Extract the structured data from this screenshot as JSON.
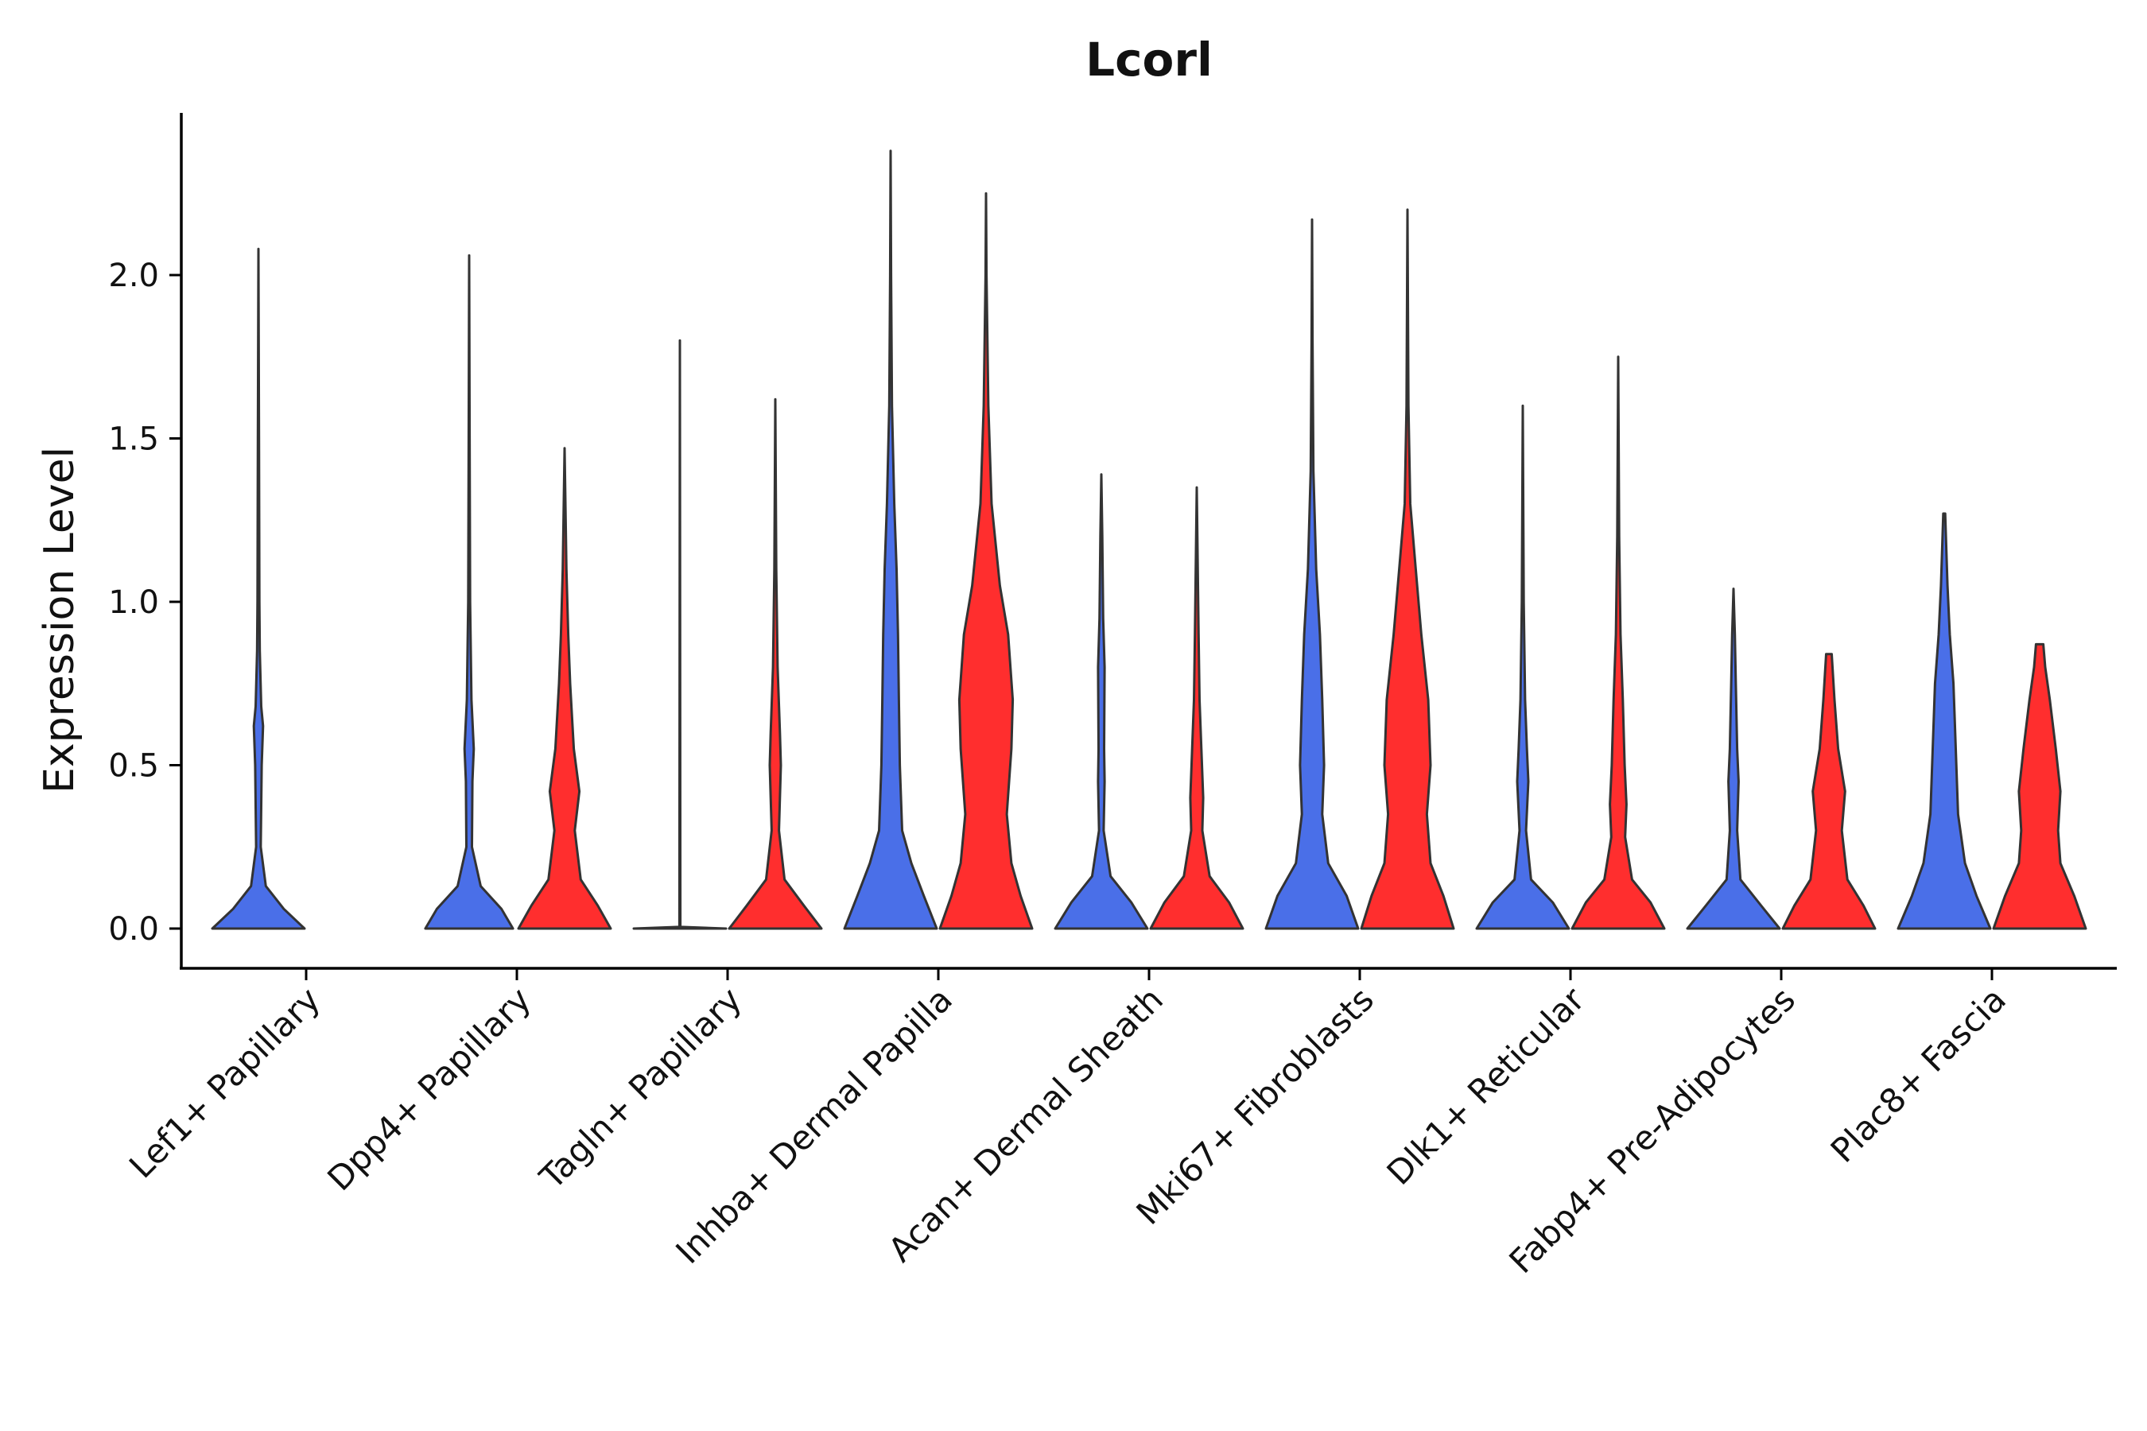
{
  "chart_data": {
    "type": "violin",
    "title": "Lcorl",
    "xlabel": "",
    "ylabel": "Expression Level",
    "ylim": [
      -0.12,
      2.5
    ],
    "yticks": [
      {
        "value": 0.0,
        "label": "0.0"
      },
      {
        "value": 0.5,
        "label": "0.5"
      },
      {
        "value": 1.0,
        "label": "1.0"
      },
      {
        "value": 1.5,
        "label": "1.5"
      },
      {
        "value": 2.0,
        "label": "2.0"
      }
    ],
    "legend": "none",
    "grid": false,
    "series_colors": {
      "group1": "#4A6FE8",
      "group2": "#FF2E2E"
    },
    "categories": [
      {
        "label": "Lef1+ Papillary",
        "violins": [
          {
            "group": "group1",
            "max": 2.08,
            "profile": [
              [
                0,
                1
              ],
              [
                0.06,
                0.55
              ],
              [
                0.13,
                0.16
              ],
              [
                0.25,
                0.05
              ],
              [
                0.5,
                0.07
              ],
              [
                0.62,
                0.1
              ],
              [
                0.68,
                0.06
              ],
              [
                0.85,
                0.03
              ],
              [
                1.0,
                0.02
              ],
              [
                1.5,
                0.012
              ],
              [
                2.08,
                0
              ]
            ]
          }
        ]
      },
      {
        "label": "Dpp4+ Papillary",
        "violins": [
          {
            "group": "group1",
            "max": 2.06,
            "profile": [
              [
                0,
                0.95
              ],
              [
                0.06,
                0.7
              ],
              [
                0.13,
                0.25
              ],
              [
                0.25,
                0.06
              ],
              [
                0.45,
                0.07
              ],
              [
                0.55,
                0.1
              ],
              [
                0.7,
                0.05
              ],
              [
                1.0,
                0.02
              ],
              [
                1.5,
                0.01
              ],
              [
                2.06,
                0
              ]
            ]
          },
          {
            "group": "group2",
            "max": 1.47,
            "profile": [
              [
                0,
                1
              ],
              [
                0.07,
                0.72
              ],
              [
                0.15,
                0.35
              ],
              [
                0.3,
                0.22
              ],
              [
                0.42,
                0.32
              ],
              [
                0.55,
                0.2
              ],
              [
                0.75,
                0.12
              ],
              [
                0.9,
                0.08
              ],
              [
                1.1,
                0.04
              ],
              [
                1.47,
                0
              ]
            ]
          }
        ]
      },
      {
        "label": "Tagln+ Papillary",
        "violins": [
          {
            "group": "group1",
            "max": 1.8,
            "profile": [
              [
                0,
                1
              ],
              [
                0.005,
                0.01
              ],
              [
                0.05,
                0.01
              ],
              [
                1.8,
                0
              ]
            ]
          },
          {
            "group": "group2",
            "max": 1.62,
            "profile": [
              [
                0,
                1
              ],
              [
                0.07,
                0.62
              ],
              [
                0.15,
                0.2
              ],
              [
                0.3,
                0.08
              ],
              [
                0.5,
                0.12
              ],
              [
                0.6,
                0.1
              ],
              [
                0.8,
                0.05
              ],
              [
                1.1,
                0.02
              ],
              [
                1.62,
                0
              ]
            ]
          }
        ]
      },
      {
        "label": "Inhba+ Dermal Papilla",
        "violins": [
          {
            "group": "group1",
            "max": 2.38,
            "profile": [
              [
                0,
                1
              ],
              [
                0.1,
                0.72
              ],
              [
                0.2,
                0.45
              ],
              [
                0.3,
                0.25
              ],
              [
                0.5,
                0.2
              ],
              [
                0.7,
                0.18
              ],
              [
                0.9,
                0.16
              ],
              [
                1.1,
                0.13
              ],
              [
                1.3,
                0.08
              ],
              [
                1.6,
                0.03
              ],
              [
                2.0,
                0.01
              ],
              [
                2.38,
                0
              ]
            ]
          },
          {
            "group": "group2",
            "max": 2.25,
            "profile": [
              [
                0,
                1
              ],
              [
                0.1,
                0.75
              ],
              [
                0.2,
                0.55
              ],
              [
                0.35,
                0.45
              ],
              [
                0.55,
                0.55
              ],
              [
                0.7,
                0.58
              ],
              [
                0.9,
                0.48
              ],
              [
                1.05,
                0.3
              ],
              [
                1.3,
                0.12
              ],
              [
                1.6,
                0.05
              ],
              [
                2.0,
                0.01
              ],
              [
                2.25,
                0
              ]
            ]
          }
        ]
      },
      {
        "label": "Acan+ Dermal Sheath",
        "violins": [
          {
            "group": "group1",
            "max": 1.39,
            "profile": [
              [
                0,
                1
              ],
              [
                0.08,
                0.65
              ],
              [
                0.16,
                0.2
              ],
              [
                0.3,
                0.05
              ],
              [
                0.45,
                0.07
              ],
              [
                0.55,
                0.06
              ],
              [
                0.8,
                0.07
              ],
              [
                0.95,
                0.04
              ],
              [
                1.2,
                0.02
              ],
              [
                1.39,
                0
              ]
            ]
          },
          {
            "group": "group2",
            "max": 1.35,
            "profile": [
              [
                0,
                1
              ],
              [
                0.08,
                0.7
              ],
              [
                0.16,
                0.28
              ],
              [
                0.3,
                0.12
              ],
              [
                0.4,
                0.14
              ],
              [
                0.55,
                0.1
              ],
              [
                0.7,
                0.06
              ],
              [
                0.9,
                0.04
              ],
              [
                1.35,
                0
              ]
            ]
          }
        ]
      },
      {
        "label": "Mki67+ Fibroblasts",
        "violins": [
          {
            "group": "group1",
            "max": 2.17,
            "profile": [
              [
                0,
                1
              ],
              [
                0.1,
                0.75
              ],
              [
                0.2,
                0.35
              ],
              [
                0.35,
                0.22
              ],
              [
                0.5,
                0.26
              ],
              [
                0.7,
                0.22
              ],
              [
                0.9,
                0.17
              ],
              [
                1.1,
                0.09
              ],
              [
                1.4,
                0.03
              ],
              [
                1.8,
                0.01
              ],
              [
                2.17,
                0
              ]
            ]
          },
          {
            "group": "group2",
            "max": 2.2,
            "profile": [
              [
                0,
                1
              ],
              [
                0.1,
                0.78
              ],
              [
                0.2,
                0.5
              ],
              [
                0.35,
                0.42
              ],
              [
                0.5,
                0.5
              ],
              [
                0.7,
                0.45
              ],
              [
                0.9,
                0.3
              ],
              [
                1.1,
                0.18
              ],
              [
                1.3,
                0.06
              ],
              [
                1.6,
                0.02
              ],
              [
                2.2,
                0
              ]
            ]
          }
        ]
      },
      {
        "label": "Dlk1+ Reticular",
        "violins": [
          {
            "group": "group1",
            "max": 1.6,
            "profile": [
              [
                0,
                1
              ],
              [
                0.08,
                0.65
              ],
              [
                0.15,
                0.18
              ],
              [
                0.3,
                0.07
              ],
              [
                0.45,
                0.12
              ],
              [
                0.55,
                0.09
              ],
              [
                0.7,
                0.05
              ],
              [
                1.0,
                0.02
              ],
              [
                1.6,
                0
              ]
            ]
          },
          {
            "group": "group2",
            "max": 1.75,
            "profile": [
              [
                0,
                1
              ],
              [
                0.08,
                0.7
              ],
              [
                0.15,
                0.3
              ],
              [
                0.28,
                0.15
              ],
              [
                0.38,
                0.18
              ],
              [
                0.5,
                0.14
              ],
              [
                0.7,
                0.1
              ],
              [
                0.9,
                0.05
              ],
              [
                1.2,
                0.02
              ],
              [
                1.75,
                0
              ]
            ]
          }
        ]
      },
      {
        "label": "Fabp4+ Pre-Adipocytes",
        "violins": [
          {
            "group": "group1",
            "max": 1.04,
            "profile": [
              [
                0,
                1
              ],
              [
                0.07,
                0.6
              ],
              [
                0.15,
                0.15
              ],
              [
                0.3,
                0.08
              ],
              [
                0.45,
                0.11
              ],
              [
                0.55,
                0.08
              ],
              [
                0.75,
                0.05
              ],
              [
                0.9,
                0.03
              ],
              [
                1.04,
                0
              ]
            ]
          },
          {
            "group": "group2",
            "max": 0.84,
            "profile": [
              [
                0,
                1
              ],
              [
                0.07,
                0.75
              ],
              [
                0.15,
                0.4
              ],
              [
                0.3,
                0.28
              ],
              [
                0.42,
                0.35
              ],
              [
                0.55,
                0.2
              ],
              [
                0.7,
                0.12
              ],
              [
                0.84,
                0.06
              ]
            ]
          }
        ]
      },
      {
        "label": "Plac8+ Fascia",
        "violins": [
          {
            "group": "group1",
            "max": 1.27,
            "profile": [
              [
                0,
                1
              ],
              [
                0.1,
                0.7
              ],
              [
                0.2,
                0.45
              ],
              [
                0.35,
                0.3
              ],
              [
                0.55,
                0.25
              ],
              [
                0.75,
                0.2
              ],
              [
                0.9,
                0.12
              ],
              [
                1.05,
                0.07
              ],
              [
                1.27,
                0.02
              ]
            ]
          },
          {
            "group": "group2",
            "max": 0.87,
            "profile": [
              [
                0,
                1
              ],
              [
                0.1,
                0.75
              ],
              [
                0.2,
                0.45
              ],
              [
                0.3,
                0.4
              ],
              [
                0.42,
                0.45
              ],
              [
                0.55,
                0.35
              ],
              [
                0.7,
                0.22
              ],
              [
                0.8,
                0.12
              ],
              [
                0.87,
                0.08
              ]
            ]
          }
        ]
      }
    ]
  }
}
